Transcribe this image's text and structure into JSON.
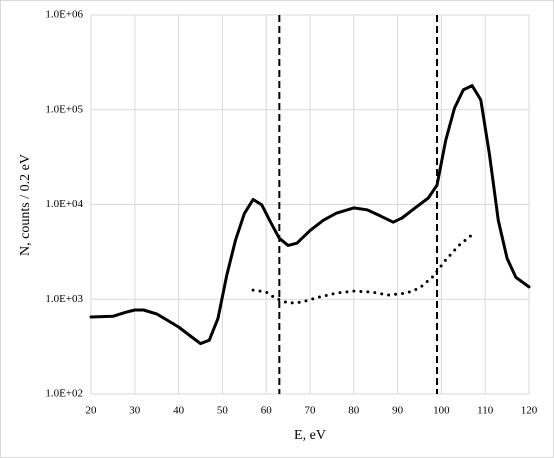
{
  "chart_data": {
    "type": "line",
    "xlabel": "E, eV",
    "ylabel": "N, counts / 0.2 eV",
    "xlim": [
      20,
      120
    ],
    "xticks": [
      20,
      30,
      40,
      50,
      60,
      70,
      80,
      90,
      100,
      110,
      120
    ],
    "ylim": [
      100,
      1000000
    ],
    "log_y": true,
    "grid": true,
    "yticks": [
      {
        "value": 100,
        "label": "1.0E+02"
      },
      {
        "value": 1000,
        "label": "1.0E+03"
      },
      {
        "value": 10000,
        "label": "1.0E+04"
      },
      {
        "value": 100000,
        "label": "1.0E+05"
      },
      {
        "value": 1000000,
        "label": "1.0E+06"
      }
    ],
    "vlines": [
      63,
      99
    ],
    "series": [
      {
        "color": "#000000",
        "style": "solid",
        "x": [
          20,
          25,
          28,
          30,
          32,
          35,
          40,
          43,
          45,
          47,
          49,
          51,
          53,
          55,
          57,
          59,
          61,
          63,
          65,
          67,
          70,
          73,
          76,
          80,
          83,
          86,
          89,
          91,
          94,
          97,
          99,
          101,
          103,
          105,
          107,
          109,
          111,
          113,
          115,
          117,
          120
        ],
        "values": [
          650,
          660,
          730,
          770,
          770,
          700,
          510,
          400,
          340,
          370,
          630,
          1800,
          4200,
          8000,
          11300,
          9900,
          6500,
          4400,
          3700,
          3900,
          5300,
          6800,
          8100,
          9200,
          8800,
          7600,
          6500,
          7200,
          9200,
          11700,
          16000,
          48000,
          104000,
          162000,
          180000,
          127000,
          33000,
          6800,
          2700,
          1700,
          1350
        ]
      },
      {
        "color": "#000000",
        "style": "dotted",
        "x": [
          57,
          60,
          62,
          65,
          68,
          72,
          76,
          80,
          84,
          88,
          92,
          95,
          98,
          101,
          104,
          107
        ],
        "values": [
          1250,
          1190,
          1030,
          910,
          930,
          1050,
          1160,
          1220,
          1190,
          1110,
          1160,
          1310,
          1720,
          2600,
          3700,
          4800
        ]
      }
    ]
  }
}
